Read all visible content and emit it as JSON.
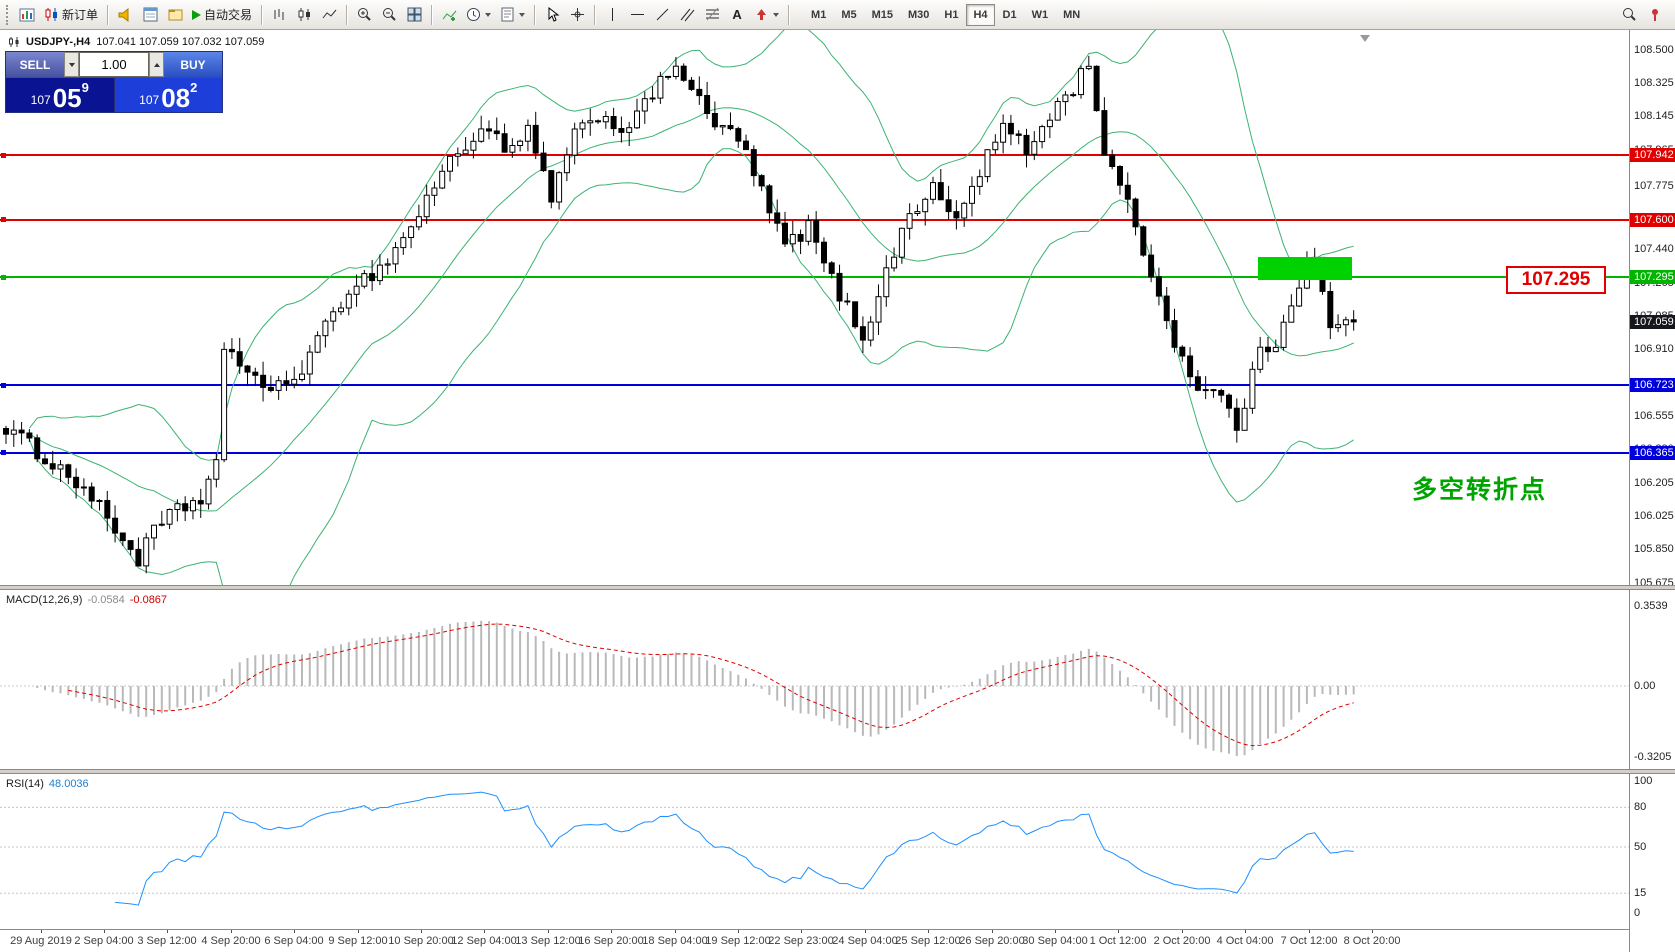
{
  "toolbar": {
    "new_order_label": "新订单",
    "auto_trading_label": "自动交易",
    "text_tool_glyph": "A",
    "timeframes": [
      "M1",
      "M5",
      "M15",
      "M30",
      "H1",
      "H4",
      "D1",
      "W1",
      "MN"
    ],
    "active_timeframe": "H4"
  },
  "quote_panel": {
    "sell_label": "SELL",
    "buy_label": "BUY",
    "volume": "1.00",
    "bid": {
      "prefix": "107",
      "big": "05",
      "sup": "9"
    },
    "ask": {
      "prefix": "107",
      "big": "08",
      "sup": "2"
    }
  },
  "chart": {
    "title": "USDJPY-,H4",
    "ohlc": "107.041 107.059 107.032 107.059",
    "annotation": "多空转折点",
    "callout": "107.295",
    "axis_prices": [
      "108.500",
      "108.325",
      "108.145",
      "107.965",
      "107.775",
      "107.600",
      "107.440",
      "107.265",
      "107.085",
      "106.910",
      "106.730",
      "106.555",
      "106.380",
      "106.205",
      "106.025",
      "105.850",
      "105.675"
    ],
    "levels": [
      {
        "price": 107.942,
        "label": "107.942",
        "color": "#e00000"
      },
      {
        "price": 107.6,
        "label": "107.600",
        "color": "#e00000"
      },
      {
        "price": 107.295,
        "label": "107.295",
        "color": "#00b400"
      },
      {
        "price": 106.723,
        "label": "106.723",
        "color": "#0000dc"
      },
      {
        "price": 106.365,
        "label": "106.365",
        "color": "#0000dc"
      }
    ],
    "current": {
      "price": 107.059,
      "label": "107.059",
      "color": "#15171c"
    }
  },
  "macd": {
    "label": "MACD(12,26,9)",
    "value": "-0.0584",
    "signal": "-0.0867",
    "axis": [
      {
        "v": 0.3539,
        "label": "0.3539"
      },
      {
        "v": 0,
        "label": "0.00"
      },
      {
        "v": -0.3205,
        "label": "-0.3205"
      }
    ]
  },
  "rsi": {
    "label": "RSI(14)",
    "value": "48.0036",
    "axis": [
      {
        "v": 100,
        "label": "100"
      },
      {
        "v": 80,
        "label": "80"
      },
      {
        "v": 50,
        "label": "50"
      },
      {
        "v": 15,
        "label": "15"
      },
      {
        "v": 0,
        "label": "0"
      }
    ]
  },
  "time_axis": [
    "29 Aug 2019",
    "2 Sep 04:00",
    "3 Sep 12:00",
    "4 Sep 20:00",
    "6 Sep 04:00",
    "9 Sep 12:00",
    "10 Sep 20:00",
    "12 Sep 04:00",
    "13 Sep 12:00",
    "16 Sep 20:00",
    "18 Sep 04:00",
    "19 Sep 12:00",
    "22 Sep 23:00",
    "24 Sep 04:00",
    "25 Sep 12:00",
    "26 Sep 20:00",
    "30 Sep 04:00",
    "1 Oct 12:00",
    "2 Oct 20:00",
    "4 Oct 04:00",
    "7 Oct 12:00",
    "8 Oct 20:00"
  ],
  "chart_data": {
    "type": "candlestick",
    "symbol": "USDJPY",
    "timeframe": "H4",
    "bars": 174,
    "last_close": 107.059,
    "ylim": [
      105.675,
      108.5
    ],
    "price_path": [
      [
        0,
        106.5
      ],
      [
        5,
        106.34
      ],
      [
        10,
        106.18
      ],
      [
        14,
        105.96
      ],
      [
        17,
        105.8
      ],
      [
        19,
        105.95
      ],
      [
        22,
        106.06
      ],
      [
        25,
        106.12
      ],
      [
        27,
        106.32
      ],
      [
        28,
        106.88
      ],
      [
        31,
        106.82
      ],
      [
        34,
        106.68
      ],
      [
        37,
        106.76
      ],
      [
        40,
        106.95
      ],
      [
        44,
        107.24
      ],
      [
        48,
        107.34
      ],
      [
        52,
        107.56
      ],
      [
        56,
        107.86
      ],
      [
        59,
        108.0
      ],
      [
        62,
        108.1
      ],
      [
        64,
        107.94
      ],
      [
        67,
        108.06
      ],
      [
        70,
        107.72
      ],
      [
        73,
        108.04
      ],
      [
        76,
        108.16
      ],
      [
        79,
        108.08
      ],
      [
        82,
        108.2
      ],
      [
        86,
        108.44
      ],
      [
        88,
        108.28
      ],
      [
        91,
        108.1
      ],
      [
        94,
        108.04
      ],
      [
        97,
        107.74
      ],
      [
        100,
        107.46
      ],
      [
        103,
        107.56
      ],
      [
        106,
        107.28
      ],
      [
        110,
        106.98
      ],
      [
        113,
        107.32
      ],
      [
        116,
        107.64
      ],
      [
        119,
        107.76
      ],
      [
        122,
        107.6
      ],
      [
        125,
        107.86
      ],
      [
        128,
        108.1
      ],
      [
        131,
        107.96
      ],
      [
        134,
        108.16
      ],
      [
        137,
        108.3
      ],
      [
        139,
        108.44
      ],
      [
        141,
        107.96
      ],
      [
        143,
        107.76
      ],
      [
        145,
        107.58
      ],
      [
        148,
        107.18
      ],
      [
        151,
        106.86
      ],
      [
        153,
        106.72
      ],
      [
        156,
        106.66
      ],
      [
        158,
        106.5
      ],
      [
        161,
        106.9
      ],
      [
        163,
        106.96
      ],
      [
        166,
        107.28
      ],
      [
        168,
        107.4
      ],
      [
        170,
        107.02
      ],
      [
        173,
        107.06
      ]
    ],
    "bollinger": {
      "period": 20,
      "deviation": 2,
      "color": "#3cb371"
    },
    "macd": {
      "fast": 12,
      "slow": 26,
      "signal": 9,
      "value": -0.0584,
      "signal_value": -0.0867,
      "axis_max": 0.3539,
      "axis_min": -0.3205,
      "histogram_color": "#b9b9b9",
      "signal_color": "#e00000"
    },
    "rsi": {
      "period": 14,
      "value": 48.0036,
      "levels": [
        80,
        50,
        15
      ],
      "color": "#1e90ff",
      "range": [
        0,
        100
      ]
    },
    "horizontal_levels": [
      107.942,
      107.6,
      107.295,
      106.723,
      106.365
    ],
    "annotations": [
      {
        "type": "rectangle",
        "price_top": 107.4,
        "price_bottom": 107.28,
        "color": "#00d200"
      },
      {
        "type": "text_label",
        "text": "107.295",
        "color": "#e00000"
      },
      {
        "type": "text",
        "text": "多空转折点",
        "color": "#00a400"
      }
    ]
  }
}
